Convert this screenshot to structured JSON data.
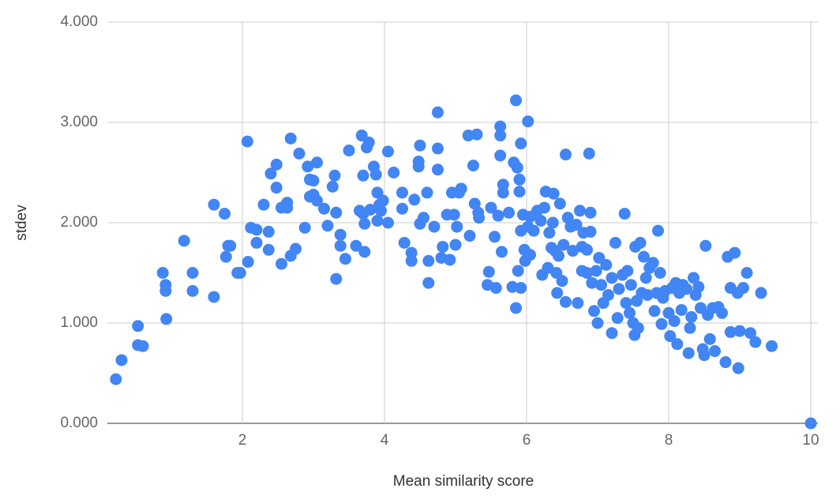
{
  "chart_data": {
    "type": "scatter",
    "xlabel": "Mean similarity score",
    "ylabel": "stdev",
    "color": "#4285f4",
    "grid": true,
    "xlim": [
      0.1,
      10.1
    ],
    "ylim": [
      0,
      4
    ],
    "xticks": [
      2,
      4,
      6,
      8,
      10
    ],
    "yticks": [
      {
        "value": 0,
        "label": "0.000"
      },
      {
        "value": 1,
        "label": "1.000"
      },
      {
        "value": 2,
        "label": "2.000"
      },
      {
        "value": 3,
        "label": "3.000"
      },
      {
        "value": 4,
        "label": "4.000"
      }
    ],
    "x": [
      0.22,
      0.3,
      0.53,
      0.53,
      0.6,
      0.88,
      0.92,
      0.92,
      0.93,
      1.18,
      1.3,
      1.3,
      1.6,
      1.6,
      1.75,
      1.77,
      1.8,
      1.83,
      1.93,
      1.97,
      2.07,
      2.08,
      2.12,
      2.2,
      2.2,
      2.3,
      2.37,
      2.37,
      2.4,
      2.48,
      2.48,
      2.55,
      2.55,
      2.63,
      2.63,
      2.68,
      2.68,
      2.75,
      2.8,
      2.88,
      2.92,
      2.95,
      2.95,
      3.0,
      3.0,
      3.05,
      3.05,
      3.15,
      3.2,
      3.27,
      3.3,
      3.32,
      3.32,
      3.38,
      3.38,
      3.45,
      3.5,
      3.6,
      3.65,
      3.68,
      3.7,
      3.7,
      3.72,
      3.72,
      3.75,
      3.78,
      3.8,
      3.85,
      3.88,
      3.9,
      3.9,
      3.93,
      3.95,
      3.98,
      4.05,
      4.05,
      4.13,
      4.25,
      4.25,
      4.28,
      4.38,
      4.38,
      4.42,
      4.48,
      4.48,
      4.5,
      4.5,
      4.55,
      4.6,
      4.62,
      4.62,
      4.7,
      4.75,
      4.75,
      4.75,
      4.8,
      4.82,
      4.88,
      4.92,
      4.95,
      4.98,
      5.0,
      5.02,
      5.05,
      5.08,
      5.18,
      5.2,
      5.25,
      5.27,
      5.3,
      5.32,
      5.33,
      5.45,
      5.47,
      5.5,
      5.55,
      5.57,
      5.6,
      5.63,
      5.63,
      5.63,
      5.65,
      5.67,
      5.67,
      5.75,
      5.8,
      5.82,
      5.85,
      5.85,
      5.87,
      5.88,
      5.9,
      5.9,
      5.92,
      5.92,
      5.92,
      5.95,
      5.97,
      5.98,
      6.02,
      6.02,
      6.05,
      6.05,
      6.1,
      6.15,
      6.2,
      6.22,
      6.25,
      6.27,
      6.3,
      6.32,
      6.35,
      6.37,
      6.38,
      6.4,
      6.42,
      6.43,
      6.45,
      6.47,
      6.5,
      6.52,
      6.55,
      6.55,
      6.58,
      6.62,
      6.65,
      6.7,
      6.72,
      6.75,
      6.78,
      6.78,
      6.8,
      6.85,
      6.85,
      6.88,
      6.9,
      6.9,
      6.92,
      6.95,
      6.98,
      7.0,
      7.02,
      7.05,
      7.08,
      7.12,
      7.15,
      7.2,
      7.2,
      7.25,
      7.28,
      7.3,
      7.35,
      7.38,
      7.4,
      7.42,
      7.45,
      7.47,
      7.5,
      7.52,
      7.53,
      7.55,
      7.57,
      7.6,
      7.62,
      7.65,
      7.68,
      7.7,
      7.73,
      7.78,
      7.8,
      7.83,
      7.85,
      7.88,
      7.9,
      7.92,
      7.95,
      8.0,
      8.02,
      8.05,
      8.08,
      8.1,
      8.12,
      8.15,
      8.18,
      8.2,
      8.25,
      8.28,
      8.3,
      8.32,
      8.35,
      8.38,
      8.42,
      8.45,
      8.48,
      8.5,
      8.52,
      8.55,
      8.58,
      8.62,
      8.65,
      8.7,
      8.75,
      8.8,
      8.83,
      8.87,
      8.87,
      8.93,
      8.97,
      8.98,
      9.0,
      9.05,
      9.1,
      9.15,
      9.22,
      9.3,
      9.45,
      10.0
    ],
    "values": [
      0.44,
      0.63,
      0.97,
      0.78,
      0.77,
      1.5,
      1.38,
      1.32,
      1.04,
      1.82,
      1.5,
      1.32,
      2.18,
      1.26,
      2.09,
      1.66,
      1.77,
      1.77,
      1.5,
      1.5,
      2.81,
      1.61,
      1.95,
      1.93,
      1.8,
      2.18,
      1.91,
      1.73,
      2.49,
      2.58,
      2.35,
      2.15,
      1.59,
      2.15,
      2.2,
      2.84,
      1.67,
      1.74,
      2.69,
      1.95,
      2.56,
      2.43,
      2.26,
      2.42,
      2.28,
      2.6,
      2.22,
      2.14,
      1.97,
      2.36,
      2.47,
      1.44,
      2.1,
      1.88,
      1.77,
      1.64,
      2.72,
      1.77,
      2.12,
      2.87,
      2.47,
      2.09,
      1.99,
      1.71,
      2.75,
      2.8,
      2.13,
      2.56,
      2.48,
      2.3,
      2.02,
      2.18,
      2.12,
      2.22,
      2.0,
      2.71,
      2.5,
      2.3,
      2.14,
      1.8,
      1.7,
      1.62,
      2.23,
      2.61,
      2.56,
      2.77,
      1.99,
      2.05,
      2.3,
      1.4,
      1.62,
      1.96,
      3.1,
      2.74,
      2.53,
      1.65,
      1.76,
      2.08,
      1.63,
      2.3,
      2.08,
      1.78,
      1.96,
      2.3,
      2.34,
      2.87,
      1.87,
      2.57,
      2.19,
      2.88,
      2.1,
      2.05,
      1.38,
      1.51,
      2.15,
      1.86,
      1.35,
      2.07,
      2.96,
      2.87,
      2.67,
      1.71,
      2.3,
      2.38,
      2.1,
      1.36,
      2.6,
      3.22,
      1.15,
      2.55,
      1.52,
      2.31,
      2.43,
      1.35,
      1.92,
      2.79,
      2.08,
      1.73,
      1.62,
      3.01,
      1.96,
      2.06,
      1.68,
      1.92,
      2.12,
      2.02,
      1.48,
      2.15,
      2.31,
      1.55,
      1.9,
      1.75,
      2.0,
      2.29,
      1.72,
      1.5,
      1.3,
      1.67,
      2.19,
      1.42,
      1.78,
      2.68,
      1.21,
      2.05,
      1.96,
      1.72,
      1.98,
      1.2,
      2.12,
      1.52,
      1.76,
      1.9,
      1.5,
      1.73,
      2.69,
      1.91,
      2.1,
      1.4,
      1.12,
      1.52,
      1.0,
      1.65,
      1.38,
      1.2,
      1.58,
      1.28,
      0.9,
      1.45,
      1.8,
      1.05,
      1.34,
      1.48,
      2.09,
      1.2,
      1.52,
      1.1,
      1.38,
      1.0,
      0.88,
      1.76,
      1.22,
      0.95,
      1.8,
      1.3,
      1.66,
      1.45,
      1.28,
      1.55,
      1.6,
      1.12,
      1.3,
      1.92,
      1.5,
      0.99,
      1.25,
      1.32,
      1.1,
      0.87,
      1.35,
      1.02,
      1.4,
      0.79,
      1.3,
      1.13,
      1.38,
      1.34,
      0.7,
      0.95,
      1.06,
      1.45,
      1.28,
      1.36,
      1.15,
      0.74,
      0.68,
      1.77,
      1.08,
      0.84,
      1.15,
      0.72,
      1.16,
      1.1,
      0.61,
      1.66,
      0.91,
      1.35,
      1.7,
      1.3,
      0.55,
      0.92,
      1.35,
      1.5,
      0.9,
      0.81,
      1.3,
      0.77,
      0.0
    ]
  }
}
